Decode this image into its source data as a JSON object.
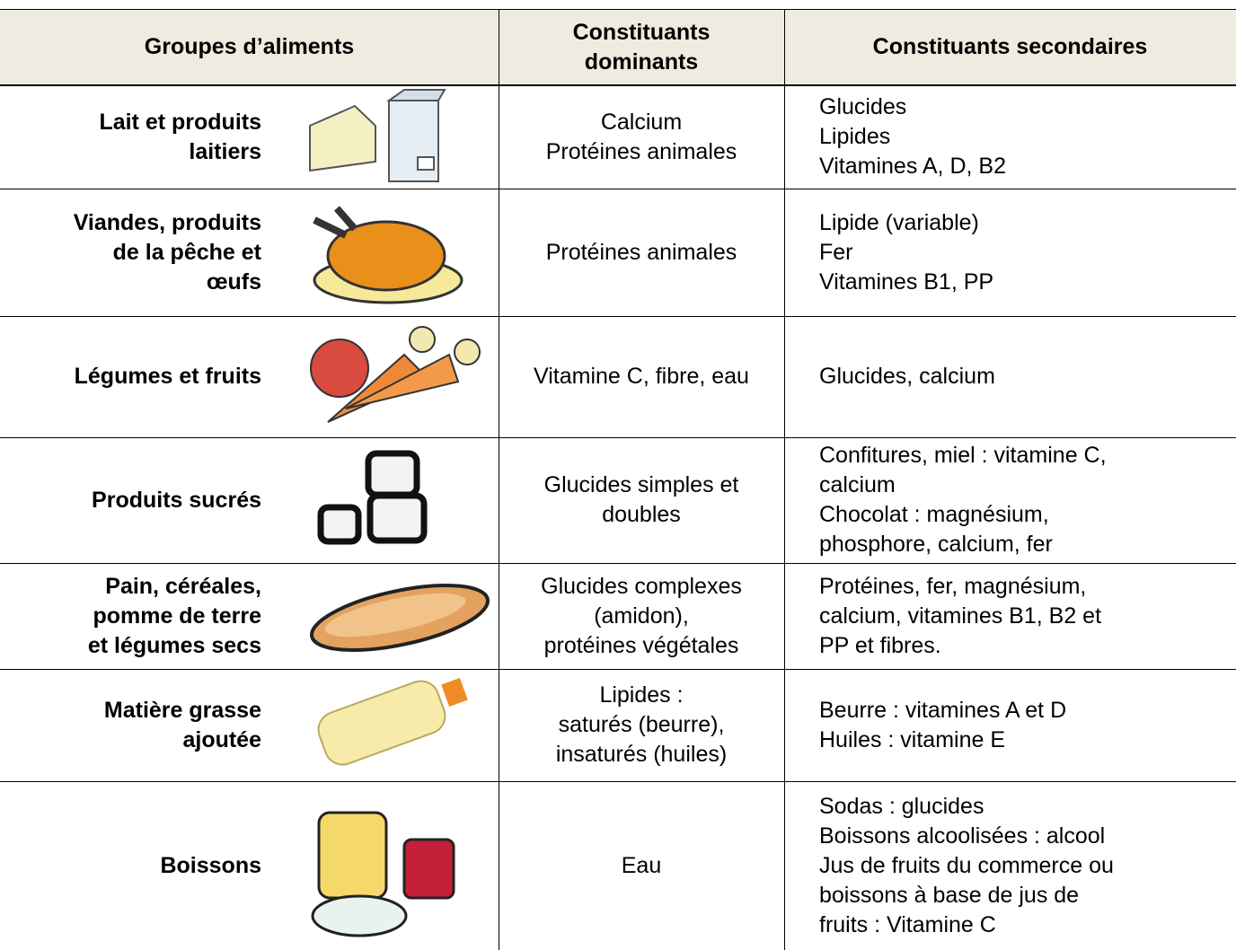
{
  "header": {
    "columns": [
      [
        "Groupes d’aliments"
      ],
      [
        "Constituants",
        "dominants"
      ],
      [
        "Constituants secondaires"
      ]
    ]
  },
  "rows": [
    {
      "group": [
        "Lait et produits",
        "laitiers"
      ],
      "dominant": [
        "Calcium",
        "Protéines animales"
      ],
      "secondary": [
        "Glucides",
        "Lipides",
        "Vitamines A, D, B2"
      ]
    },
    {
      "group": [
        "Viandes, produits",
        "de la pêche et",
        "œufs"
      ],
      "dominant": [
        "Protéines animales"
      ],
      "secondary": [
        "Lipide (variable)",
        "Fer",
        "Vitamines B1, PP"
      ]
    },
    {
      "group": [
        "Légumes et fruits"
      ],
      "dominant": [
        "Vitamine C, fibre, eau"
      ],
      "secondary": [
        "Glucides, calcium"
      ]
    },
    {
      "group": [
        "Produits sucrés"
      ],
      "dominant": [
        "Glucides simples et",
        "doubles"
      ],
      "secondary": [
        "Confitures, miel : vitamine C,",
        "calcium",
        "Chocolat : magnésium,",
        "phosphore, calcium, fer"
      ]
    },
    {
      "group": [
        "Pain, céréales,",
        "pomme de terre",
        "et légumes secs"
      ],
      "dominant": [
        "Glucides complexes",
        "(amidon),",
        "protéines végétales"
      ],
      "secondary": [
        "Protéines, fer, magnésium,",
        "calcium, vitamines B1, B2 et",
        "PP et fibres."
      ]
    },
    {
      "group": [
        "Matière grasse",
        "ajoutée"
      ],
      "dominant": [
        "Lipides :",
        "saturés (beurre),",
        "insaturés (huiles)"
      ],
      "secondary": [
        "Beurre : vitamines A et D",
        "Huiles : vitamine E"
      ]
    },
    {
      "group": [
        "Boissons"
      ],
      "dominant": [
        "Eau"
      ],
      "secondary": [
        "Sodas : glucides",
        "Boissons alcoolisées : alcool",
        "Jus de fruits du commerce ou",
        "boissons à base de jus de",
        "fruits : Vitamine C"
      ]
    }
  ]
}
